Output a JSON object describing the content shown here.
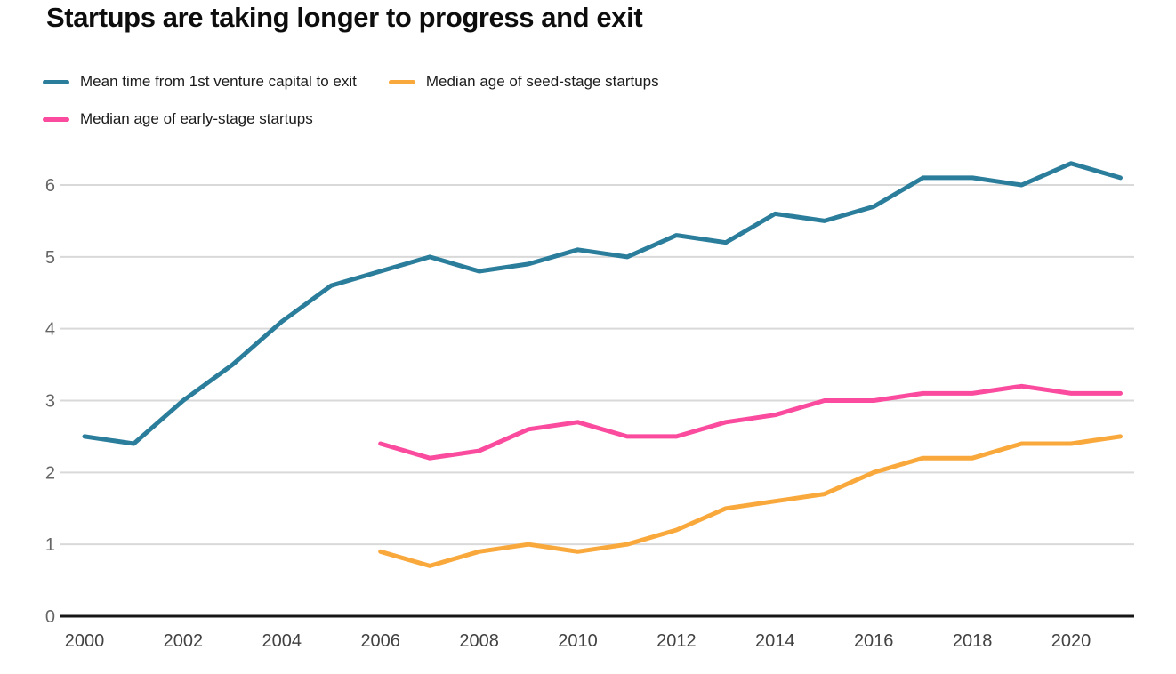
{
  "title": "Startups are taking longer to progress and exit",
  "colors": {
    "grid": "#d9d9d9",
    "axis": "#161616",
    "x_tick_label": "#424242",
    "y_tick_label": "#666666"
  },
  "chart_data": {
    "type": "line",
    "title": "Startups are taking longer to progress and exit",
    "xlabel": "",
    "ylabel": "",
    "x_start": 2000,
    "x_end": 2021,
    "xticks": [
      2000,
      2002,
      2004,
      2006,
      2008,
      2010,
      2012,
      2014,
      2016,
      2018,
      2020
    ],
    "yticks": [
      0,
      1,
      2,
      3,
      4,
      5,
      6
    ],
    "ylim": [
      0,
      6.6
    ],
    "grid": "horizontal",
    "legend_position": "top-left",
    "series": [
      {
        "name": "Mean time from 1st venture capital to exit",
        "color": "#2a7d9b",
        "start_year": 2000,
        "values": [
          2.5,
          2.4,
          3.0,
          3.5,
          4.1,
          4.6,
          4.8,
          5.0,
          4.8,
          4.9,
          5.1,
          5.0,
          5.3,
          5.2,
          5.6,
          5.5,
          5.7,
          6.1,
          6.1,
          6.0,
          6.3,
          6.1
        ]
      },
      {
        "name": "Median age of seed-stage startups",
        "color": "#f9a83c",
        "start_year": 2006,
        "values": [
          0.9,
          0.7,
          0.9,
          1.0,
          0.9,
          1.0,
          1.2,
          1.5,
          1.6,
          1.7,
          2.0,
          2.2,
          2.2,
          2.4,
          2.4,
          2.5
        ]
      },
      {
        "name": "Median age of early-stage startups",
        "color": "#fa4b9e",
        "start_year": 2006,
        "values": [
          2.4,
          2.2,
          2.3,
          2.6,
          2.7,
          2.5,
          2.5,
          2.7,
          2.8,
          3.0,
          3.0,
          3.1,
          3.1,
          3.2,
          3.1,
          3.1
        ]
      }
    ]
  }
}
